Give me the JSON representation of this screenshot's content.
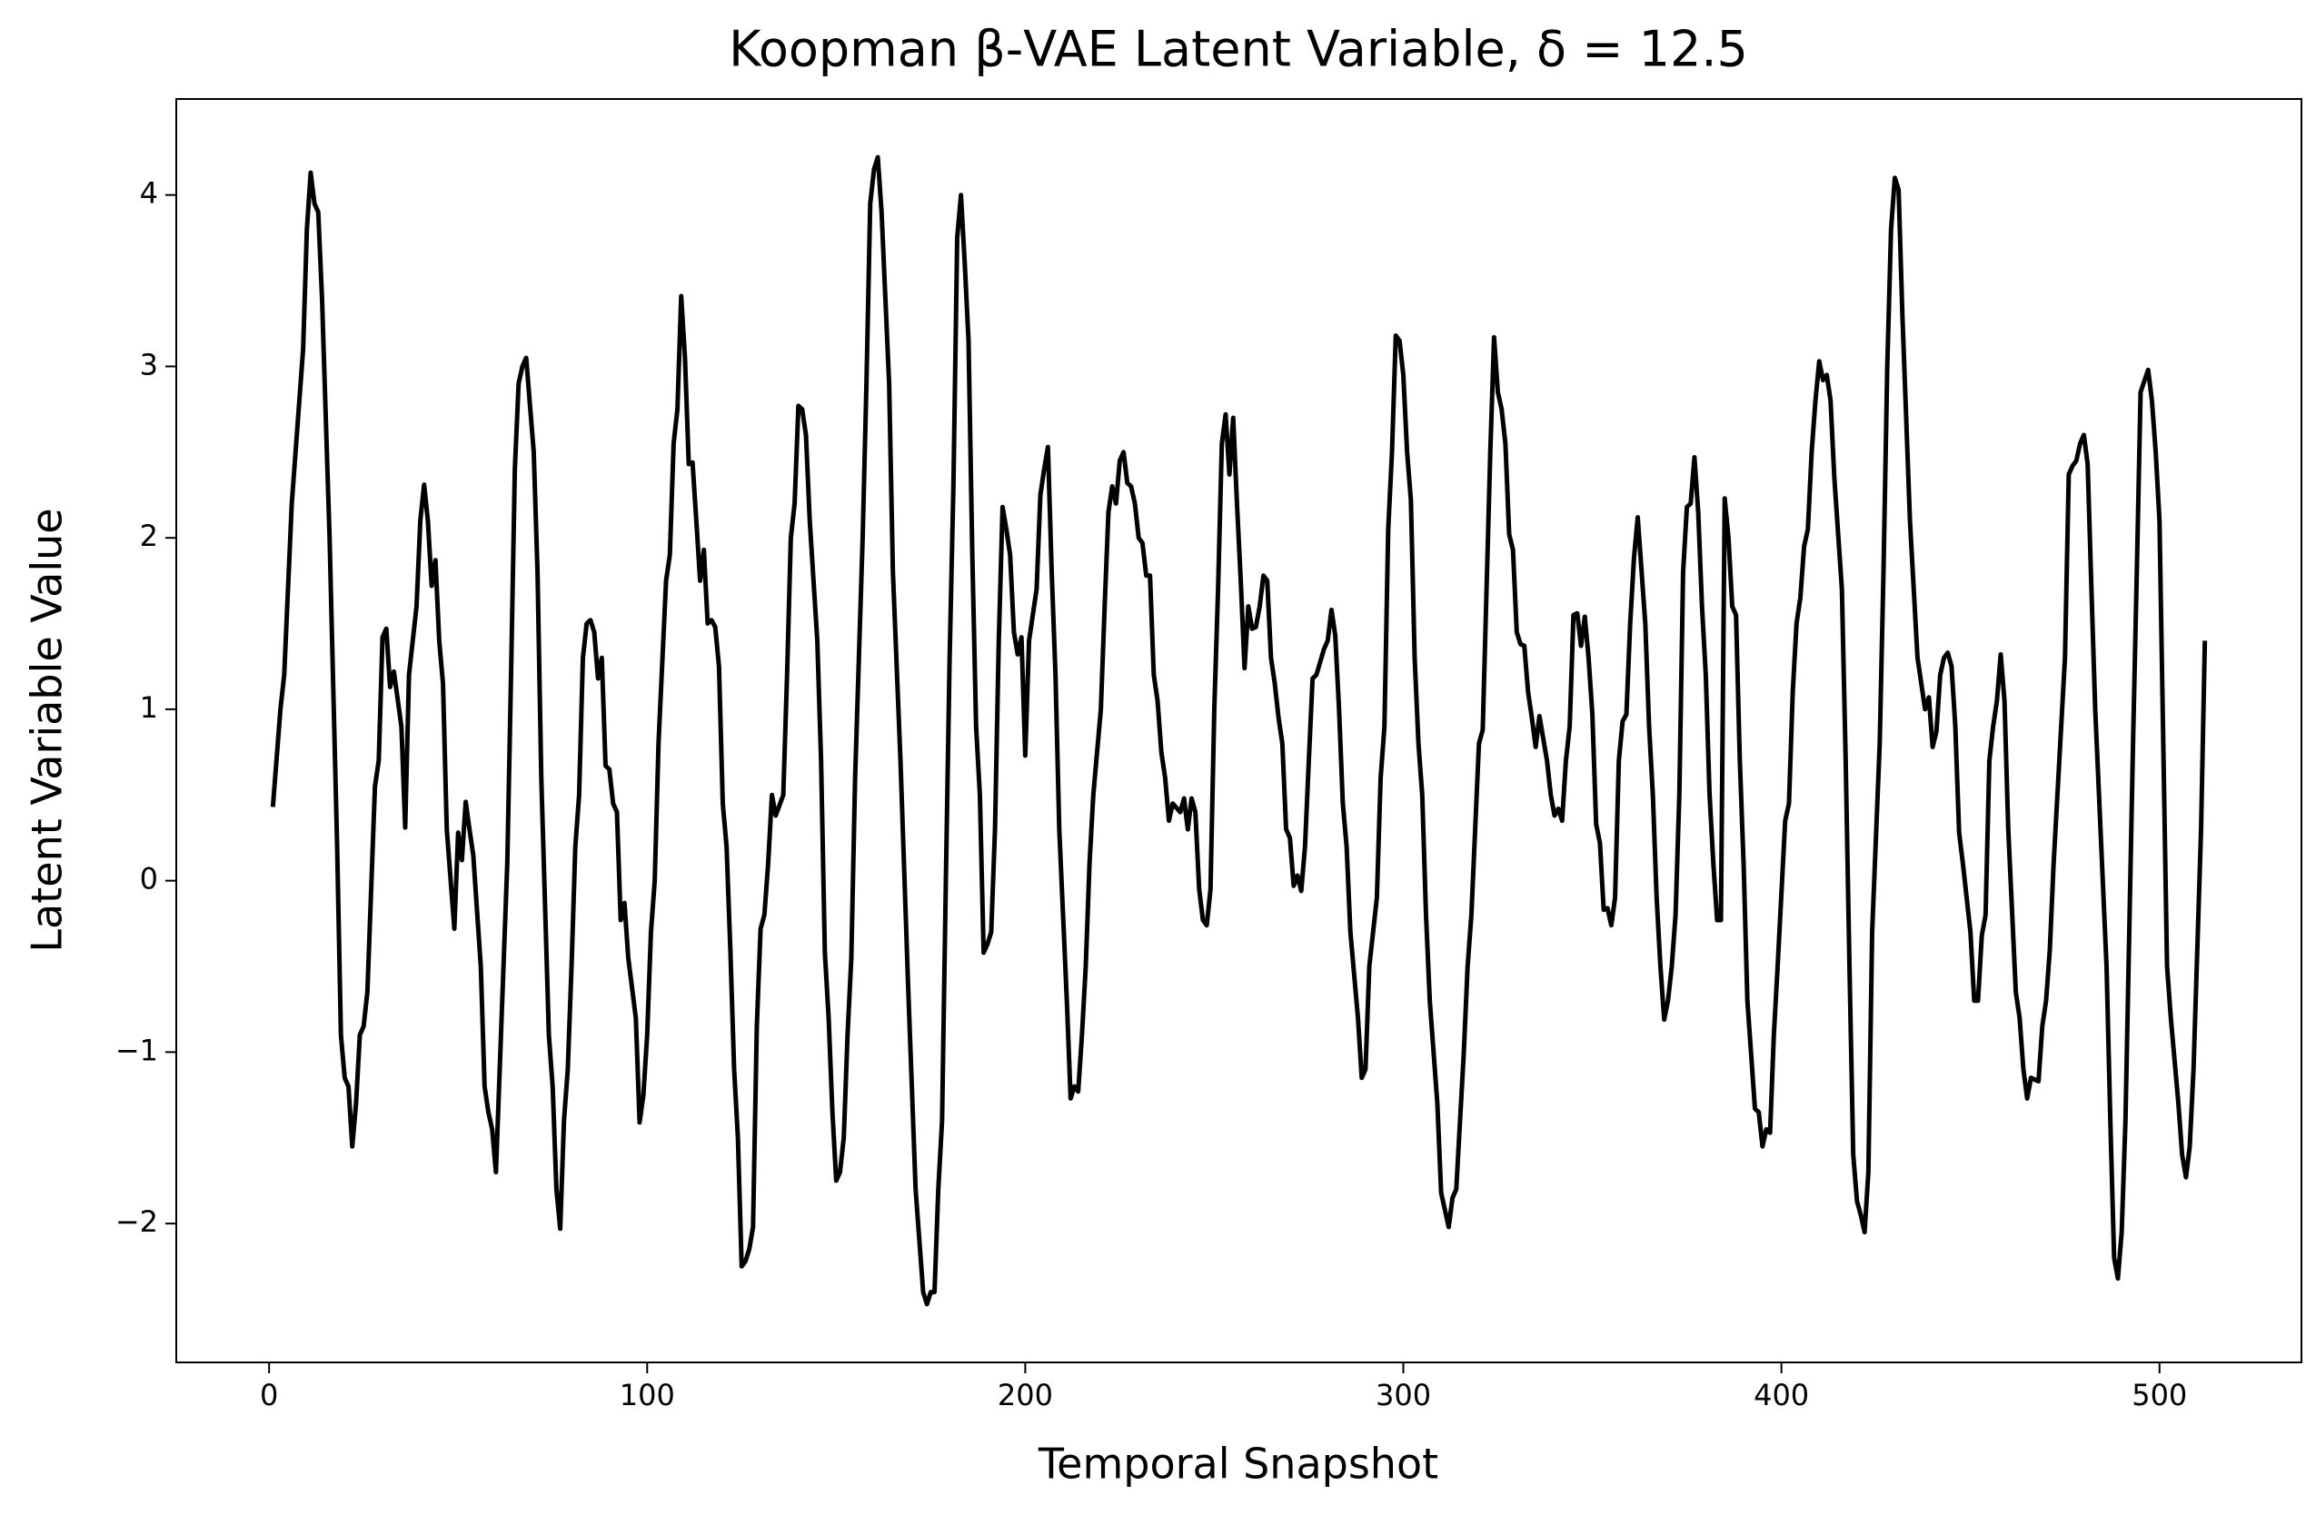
{
  "chart_data": {
    "type": "line",
    "title": "Koopman β-VAE Latent Variable, δ = 12.5",
    "xlabel": "Temporal Snapshot",
    "ylabel": "Latent Variable Value",
    "color": "#000000",
    "xlim": [
      -24.55,
      537.55
    ],
    "ylim": [
      -2.81,
      4.56
    ],
    "xticks": [
      0,
      100,
      200,
      300,
      400,
      500
    ],
    "yticks": [
      {
        "value": -2,
        "label": "−2"
      },
      {
        "value": -1,
        "label": "−1"
      },
      0,
      1,
      2,
      3,
      4
    ],
    "x": [
      1,
      3,
      4,
      6,
      9,
      10,
      11,
      12,
      13,
      14,
      16,
      18,
      19,
      20,
      21,
      22,
      23,
      24,
      25,
      26,
      28,
      29,
      30,
      31,
      32,
      33,
      35,
      36,
      37,
      39,
      40,
      41,
      42,
      43,
      44,
      45,
      46,
      47,
      49,
      50,
      51,
      52,
      53,
      54,
      56,
      57,
      58,
      59,
      60,
      62,
      63,
      64,
      65,
      66,
      67,
      68,
      70,
      71,
      72,
      74,
      75,
      76,
      77,
      78,
      79,
      80,
      81,
      82,
      83,
      84,
      85,
      86,
      87,
      88,
      89,
      90,
      91,
      92,
      93,
      94,
      95,
      97,
      98,
      99,
      100,
      101,
      102,
      103,
      105,
      106,
      107,
      108,
      109,
      110,
      111,
      112,
      113,
      114,
      115,
      116,
      117,
      118,
      119,
      120,
      121,
      122,
      123,
      124,
      125,
      126,
      127,
      128,
      129,
      130,
      131,
      132,
      133,
      134,
      136,
      137,
      138,
      139,
      140,
      141,
      142,
      143,
      145,
      146,
      147,
      148,
      149,
      150,
      151,
      152,
      153,
      154,
      155,
      157,
      158,
      159,
      160,
      161,
      162,
      163,
      164,
      165,
      167,
      169,
      171,
      173,
      174,
      175,
      176,
      177,
      178,
      179,
      180,
      181,
      182,
      183,
      184,
      185,
      186,
      187,
      188,
      189,
      190,
      191,
      192,
      193,
      194,
      195,
      196,
      197,
      198,
      199,
      200,
      201,
      203,
      204,
      205,
      206,
      207,
      208,
      209,
      211,
      212,
      213,
      214,
      215,
      216,
      217,
      218,
      220,
      221,
      222,
      223,
      224,
      225,
      226,
      227,
      228,
      229,
      230,
      231,
      232,
      233,
      234,
      235,
      236,
      237,
      238,
      239,
      241,
      242,
      243,
      244,
      245,
      246,
      247,
      248,
      249,
      250,
      251,
      252,
      253,
      254,
      255,
      256,
      257,
      258,
      259,
      260,
      261,
      262,
      263,
      264,
      265,
      266,
      267,
      268,
      269,
      270,
      271,
      272,
      273,
      274,
      275,
      276,
      277,
      279,
      280,
      281,
      282,
      283,
      284,
      285,
      286,
      287,
      288,
      289,
      290,
      291,
      292,
      293,
      294,
      295,
      296,
      297,
      298,
      299,
      300,
      301,
      302,
      303,
      304,
      305,
      306,
      307,
      309,
      310,
      312,
      313,
      314,
      316,
      317,
      318,
      320,
      321,
      323,
      324,
      325,
      326,
      327,
      328,
      329,
      330,
      331,
      332,
      333,
      334,
      335,
      336,
      338,
      339,
      340,
      341,
      342,
      343,
      344,
      345,
      346,
      347,
      348,
      349,
      350,
      351,
      352,
      353,
      354,
      355,
      356,
      357,
      358,
      359,
      360,
      361,
      362,
      364,
      365,
      366,
      367,
      368,
      369,
      370,
      371,
      372,
      373,
      374,
      375,
      376,
      377,
      378,
      379,
      380,
      381,
      382,
      383,
      384,
      385,
      386,
      387,
      388,
      389,
      390,
      391,
      393,
      394,
      395,
      396,
      397,
      398,
      399,
      401,
      402,
      403,
      404,
      405,
      406,
      407,
      408,
      409,
      410,
      411,
      412,
      413,
      414,
      416,
      417,
      418,
      419,
      420,
      421,
      422,
      423,
      424,
      426,
      427,
      428,
      429,
      430,
      431,
      432,
      434,
      435,
      436,
      438,
      439,
      440,
      441,
      442,
      443,
      444,
      445,
      446,
      447,
      448,
      450,
      451,
      452,
      453,
      454,
      455,
      456,
      457,
      458,
      459,
      460,
      462,
      463,
      464,
      465,
      466,
      467,
      468,
      469,
      470,
      471,
      472,
      475,
      476,
      477,
      478,
      479,
      480,
      481,
      482,
      483,
      486,
      487,
      488,
      489,
      490,
      491,
      492,
      493,
      494,
      495,
      497,
      498,
      499,
      500,
      501,
      502,
      503,
      505,
      506,
      507,
      508,
      509,
      511,
      512
    ],
    "values": [
      0.43,
      1.0,
      1.2,
      2.2,
      3.1,
      3.8,
      4.13,
      3.95,
      3.9,
      3.4,
      2.0,
      0.2,
      -0.9,
      -1.15,
      -1.2,
      -1.55,
      -1.3,
      -0.9,
      -0.85,
      -0.65,
      0.55,
      0.7,
      1.42,
      1.47,
      1.13,
      1.22,
      0.9,
      0.31,
      1.2,
      1.6,
      2.1,
      2.31,
      2.1,
      1.72,
      1.87,
      1.4,
      1.15,
      0.3,
      -0.28,
      0.28,
      0.12,
      0.46,
      0.3,
      0.15,
      -0.5,
      -1.2,
      -1.35,
      -1.45,
      -1.7,
      -0.5,
      0.1,
      1.2,
      2.4,
      2.9,
      3.0,
      3.05,
      2.5,
      1.8,
      0.6,
      -0.9,
      -1.2,
      -1.8,
      -2.03,
      -1.4,
      -1.1,
      -0.5,
      0.2,
      0.5,
      1.3,
      1.5,
      1.52,
      1.45,
      1.18,
      1.3,
      0.67,
      0.65,
      0.45,
      0.4,
      -0.23,
      -0.13,
      -0.45,
      -0.8,
      -1.41,
      -1.25,
      -0.9,
      -0.3,
      0.0,
      0.8,
      1.75,
      1.9,
      2.55,
      2.75,
      3.41,
      3.05,
      2.43,
      2.44,
      2.1,
      1.75,
      1.93,
      1.5,
      1.52,
      1.48,
      1.25,
      0.45,
      0.2,
      -0.4,
      -1.1,
      -1.5,
      -2.25,
      -2.22,
      -2.15,
      -2.02,
      -0.85,
      -0.28,
      -0.2,
      0.1,
      0.5,
      0.38,
      0.5,
      1.2,
      2.0,
      2.2,
      2.77,
      2.75,
      2.6,
      2.1,
      1.4,
      0.7,
      -0.42,
      -0.8,
      -1.35,
      -1.75,
      -1.7,
      -1.5,
      -0.9,
      -0.45,
      0.6,
      2.0,
      2.9,
      3.95,
      4.15,
      4.22,
      3.9,
      3.4,
      2.9,
      1.8,
      0.7,
      -0.6,
      -1.8,
      -2.4,
      -2.47,
      -2.4,
      -2.4,
      -1.8,
      -1.4,
      0,
      1.3,
      2.3,
      3.75,
      4.0,
      3.6,
      3.15,
      1.9,
      0.9,
      0.5,
      -0.42,
      -0.37,
      -0.3,
      0.3,
      1.4,
      2.18,
      2.05,
      1.9,
      1.45,
      1.32,
      1.42,
      0.73,
      1.4,
      1.7,
      2.25,
      2.4,
      2.53,
      1.8,
      1.2,
      0.3,
      -0.7,
      -1.27,
      -1.2,
      -1.23,
      -0.9,
      -0.5,
      0.1,
      0.5,
      1.0,
      1.6,
      2.15,
      2.3,
      2.2,
      2.45,
      2.5,
      2.32,
      2.3,
      2.2,
      2.0,
      1.97,
      1.78,
      1.78,
      1.2,
      1.05,
      0.75,
      0.6,
      0.35,
      0.45,
      0.4,
      0.48,
      0.3,
      0.48,
      0.4,
      -0.05,
      -0.23,
      -0.26,
      -0.05,
      1.0,
      1.7,
      2.55,
      2.72,
      2.37,
      2.7,
      2.2,
      1.75,
      1.24,
      1.6,
      1.47,
      1.48,
      1.6,
      1.78,
      1.75,
      1.3,
      1.15,
      0.95,
      0.8,
      0.3,
      0.25,
      -0.03,
      0.03,
      -0.06,
      0.2,
      0.7,
      1.18,
      1.2,
      1.35,
      1.4,
      1.58,
      1.43,
      1.0,
      0.45,
      0.2,
      -0.3,
      -0.55,
      -0.8,
      -1.15,
      -1.1,
      -0.5,
      -0.3,
      -0.1,
      0.6,
      0.9,
      2.05,
      2.5,
      3.18,
      3.15,
      2.95,
      2.5,
      2.22,
      1.3,
      0.8,
      0.5,
      -0.2,
      -0.7,
      -1.3,
      -1.82,
      -2.02,
      -1.85,
      -1.8,
      -1.0,
      -0.5,
      -0.2,
      0.8,
      0.88,
      2.5,
      3.17,
      2.85,
      2.75,
      2.55,
      2.02,
      1.93,
      1.45,
      1.38,
      1.37,
      1.1,
      0.95,
      0.78,
      0.96,
      0.7,
      0.5,
      0.38,
      0.42,
      0.35,
      0.7,
      0.9,
      1.55,
      1.56,
      1.37,
      1.54,
      1.3,
      0.97,
      0.33,
      0.22,
      -0.17,
      -0.16,
      -0.26,
      -0.1,
      0.7,
      0.93,
      0.97,
      1.5,
      1.88,
      2.12,
      1.5,
      0.9,
      0.5,
      -0.1,
      -0.5,
      -0.81,
      -0.7,
      -0.5,
      -0.2,
      0.5,
      1.8,
      2.18,
      2.2,
      2.47,
      2.15,
      1.6,
      1.2,
      0.5,
      0.1,
      -0.23,
      -0.23,
      2.23,
      2.0,
      1.6,
      1.55,
      0.7,
      0.1,
      -0.7,
      -1.33,
      -1.35,
      -1.55,
      -1.45,
      -1.47,
      -0.9,
      -0.5,
      0.35,
      0.45,
      1.1,
      1.5,
      1.65,
      1.95,
      2.05,
      2.5,
      2.8,
      3.03,
      2.92,
      2.95,
      2.8,
      2.35,
      1.7,
      0.7,
      -0.5,
      -1.6,
      -1.87,
      -1.95,
      -2.05,
      -1.7,
      -0.3,
      0.8,
      1.8,
      3.0,
      3.8,
      4.1,
      4.03,
      3.3,
      2.1,
      1.7,
      1.3,
      1.0,
      1.07,
      0.78,
      0.87,
      1.2,
      1.3,
      1.33,
      1.25,
      0.9,
      0.28,
      0.1,
      -0.3,
      -0.7,
      -0.7,
      -0.32,
      -0.2,
      0.7,
      0.9,
      1.05,
      1.32,
      1.05,
      0.3,
      -0.65,
      -0.8,
      -1.1,
      -1.27,
      -1.15,
      -1.16,
      -1.17,
      -0.85,
      -0.7,
      -0.4,
      0.1,
      1.3,
      2.37,
      2.42,
      2.45,
      2.55,
      2.6,
      2.43,
      1.7,
      1.0,
      -0.5,
      -1.4,
      -2.2,
      -2.32,
      -2.05,
      -1.4,
      -0.3,
      0.8,
      1.8,
      2.85,
      2.98,
      2.8,
      2.5,
      2.1,
      0.8,
      -0.5,
      -0.8,
      -1.3,
      -1.6,
      -1.73,
      -1.55,
      -1.1,
      0.3,
      1.4
    ]
  }
}
